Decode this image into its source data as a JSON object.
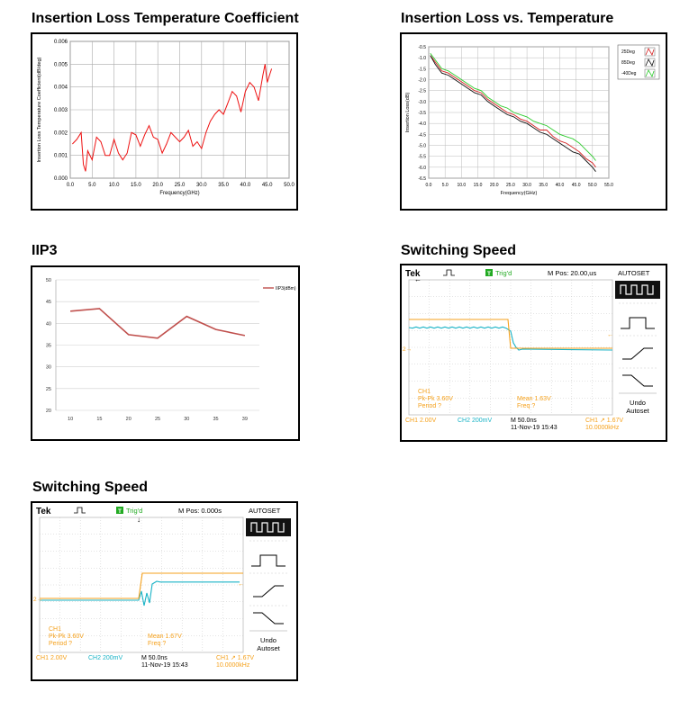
{
  "colors": {
    "scope_ch1": "#f5a11c",
    "scope_ch2": "#1ab3c6",
    "scope_trig": "#22aa22",
    "scope_grid": "#c9c9c9",
    "iip3_line": "#c0504d",
    "il_25": "#d62020",
    "il_85": "#111111",
    "il_m40": "#2ecc2e",
    "tc_line": "#ee1111"
  },
  "titles": {
    "tc": "Insertion Loss Temperature Coefficient",
    "il": "Insertion Loss vs. Temperature",
    "iip3": "IIP3",
    "sw1": "Switching Speed",
    "sw2": "Switching Speed"
  },
  "chart_data": [
    {
      "id": "tc",
      "type": "line",
      "xlabel": "Frequency(GHz)",
      "ylabel": "Insertion Loss Temperature Coefficient(dB/deg)",
      "xlim": [
        0,
        50
      ],
      "ylim": [
        0,
        0.006
      ],
      "xticks": [
        "0.0",
        "5.0",
        "10.0",
        "15.0",
        "20.0",
        "25.0",
        "30.0",
        "35.0",
        "40.0",
        "45.0",
        "50.0"
      ],
      "yticks": [
        "0.000",
        "0.001",
        "0.002",
        "0.003",
        "0.004",
        "0.005",
        "0.006"
      ],
      "grid": true,
      "series": [
        {
          "x": [
            0.5,
            1.5,
            2.5,
            3.0,
            3.5,
            4.0,
            5.0,
            6.0,
            7.0,
            8.0,
            9.0,
            10.0,
            11.0,
            12.0,
            13.0,
            14.0,
            15.0,
            16.0,
            17.0,
            18.0,
            19.0,
            20.0,
            21.0,
            22.0,
            23.0,
            24.0,
            25.0,
            26.0,
            27.0,
            28.0,
            29.0,
            30.0,
            31.0,
            32.0,
            33.0,
            34.0,
            35.0,
            36.0,
            37.0,
            38.0,
            39.0,
            40.0,
            41.0,
            42.0,
            43.0,
            44.0,
            44.5,
            45.0,
            45.5,
            46.0
          ],
          "y": [
            0.0015,
            0.0017,
            0.002,
            0.0006,
            0.0003,
            0.0012,
            0.0008,
            0.0018,
            0.0016,
            0.001,
            0.001,
            0.0017,
            0.0011,
            0.0008,
            0.0011,
            0.002,
            0.0019,
            0.0014,
            0.0019,
            0.0023,
            0.0018,
            0.0017,
            0.0011,
            0.0015,
            0.002,
            0.0018,
            0.0016,
            0.0018,
            0.0021,
            0.0014,
            0.0016,
            0.0013,
            0.002,
            0.0025,
            0.0028,
            0.003,
            0.0028,
            0.0033,
            0.0038,
            0.0036,
            0.0029,
            0.0038,
            0.0042,
            0.004,
            0.0034,
            0.0045,
            0.005,
            0.0042,
            0.0045,
            0.0048
          ]
        }
      ]
    },
    {
      "id": "il",
      "type": "line",
      "xlabel": "Frequency(GHz)",
      "ylabel": "Insertion Loss(dB)",
      "xlim": [
        0,
        55
      ],
      "ylim": [
        -6.5,
        -0.5
      ],
      "xticks": [
        "0.0",
        "5.0",
        "10.0",
        "15.0",
        "20.0",
        "25.0",
        "30.0",
        "35.0",
        "40.0",
        "45.0",
        "50.0",
        "55.0"
      ],
      "yticks": [
        "-0.5",
        "-1.0",
        "-1.5",
        "-2.0",
        "-2.5",
        "-3.0",
        "-3.5",
        "-4.0",
        "-4.5",
        "-5.0",
        "-5.5",
        "-6.0",
        "-6.5"
      ],
      "grid": true,
      "legend": "top-right",
      "x": [
        0.5,
        2,
        4,
        6,
        8,
        10,
        12,
        14,
        16,
        18,
        20,
        22,
        24,
        26,
        28,
        30,
        32,
        34,
        36,
        38,
        40,
        42,
        44,
        46,
        48,
        50,
        51
      ],
      "series": [
        {
          "name": "25Deg",
          "values": [
            -0.9,
            -1.2,
            -1.6,
            -1.7,
            -1.9,
            -2.1,
            -2.3,
            -2.5,
            -2.6,
            -2.9,
            -3.1,
            -3.3,
            -3.5,
            -3.6,
            -3.8,
            -3.9,
            -4.1,
            -4.3,
            -4.3,
            -4.6,
            -4.8,
            -4.9,
            -5.1,
            -5.3,
            -5.6,
            -5.8,
            -6.0
          ]
        },
        {
          "name": "85Deg",
          "values": [
            -0.9,
            -1.3,
            -1.7,
            -1.8,
            -2.0,
            -2.2,
            -2.4,
            -2.6,
            -2.7,
            -3.0,
            -3.2,
            -3.4,
            -3.6,
            -3.7,
            -3.9,
            -4.0,
            -4.2,
            -4.4,
            -4.5,
            -4.7,
            -4.9,
            -5.1,
            -5.3,
            -5.4,
            -5.7,
            -6.0,
            -6.2
          ]
        },
        {
          "name": "-40Deg",
          "values": [
            -0.8,
            -1.1,
            -1.5,
            -1.6,
            -1.8,
            -2.0,
            -2.2,
            -2.4,
            -2.5,
            -2.8,
            -3.0,
            -3.2,
            -3.3,
            -3.5,
            -3.6,
            -3.7,
            -3.9,
            -4.0,
            -4.1,
            -4.3,
            -4.5,
            -4.6,
            -4.7,
            -4.9,
            -5.2,
            -5.5,
            -5.7
          ]
        }
      ]
    },
    {
      "id": "iip3",
      "type": "line",
      "categories": [
        "10",
        "15",
        "20",
        "25",
        "30",
        "35",
        "39"
      ],
      "ylim": [
        20,
        50
      ],
      "yticks": [
        "20",
        "25",
        "30",
        "35",
        "40",
        "45",
        "50"
      ],
      "grid": true,
      "legend": "top-right",
      "series": [
        {
          "name": "IIP3(dBm)",
          "values": [
            42.8,
            43.4,
            37.4,
            36.6,
            41.6,
            38.6,
            37.2
          ]
        }
      ]
    }
  ],
  "scopes": [
    {
      "id": "sw1",
      "brand": "Tek",
      "trig_label": "Trig'd",
      "trig_letter": "T",
      "mpos": "M Pos: 20.00,us",
      "menu_title": "AUTOSET",
      "undo_line1": "Undo",
      "undo_line2": "Autoset",
      "ch1_label": "CH1",
      "pkpk": "Pk-Pk 3.60V",
      "period": "Period ?",
      "mean": "Mean 1.63V",
      "freq": "Freq ?",
      "ch1_scale": "CH1  2.00V",
      "ch2_scale": "CH2  200mV",
      "timebase": "M 50.0ns",
      "date": "11-Nov-19 15:43",
      "trig_info": "CH1 ↗ 1.67V",
      "trig_freq": "10.0000kHz",
      "ch2_marker": "2→",
      "direction": "fall"
    },
    {
      "id": "sw2",
      "brand": "Tek",
      "trig_label": "Trig'd",
      "trig_letter": "T",
      "mpos": "M Pos: 0.000s",
      "menu_title": "AUTOSET",
      "undo_line1": "Undo",
      "undo_line2": "Autoset",
      "ch1_label": "CH1",
      "pkpk": "Pk-Pk 3.60V",
      "period": "Period ?",
      "mean": "Mean 1.67V",
      "freq": "Freq ?",
      "ch1_scale": "CH1  2.00V",
      "ch2_scale": "CH2  200mV",
      "timebase": "M 50.0ns",
      "date": "11-Nov-19 15:43",
      "trig_info": "CH1 ↗ 1.67V",
      "trig_freq": "10.0000kHz",
      "ch2_marker": "2→",
      "direction": "rise"
    }
  ]
}
